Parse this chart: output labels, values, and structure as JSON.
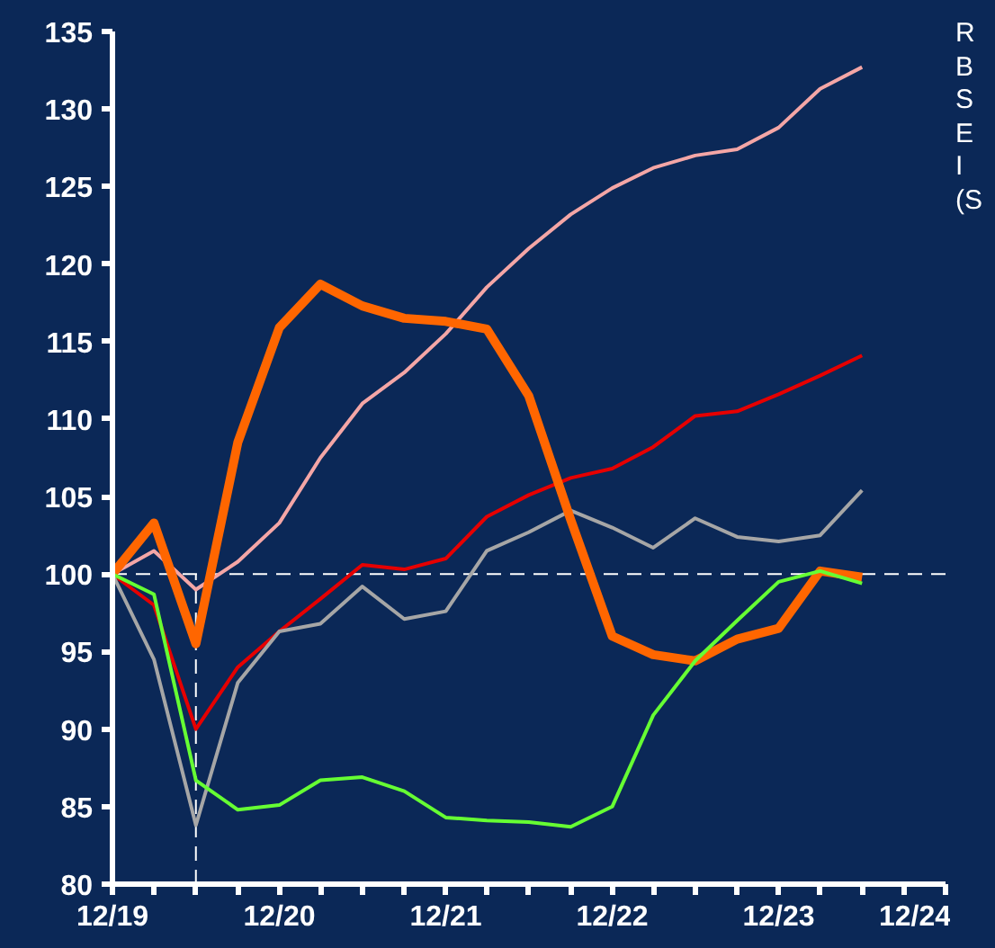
{
  "chart_data": {
    "type": "line",
    "x": [
      "2019-12",
      "2020-03",
      "2020-06",
      "2020-09",
      "2020-12",
      "2021-03",
      "2021-06",
      "2021-09",
      "2021-12",
      "2022-03",
      "2022-06",
      "2022-09",
      "2022-12",
      "2023-03",
      "2023-06",
      "2023-09",
      "2023-12",
      "2024-03",
      "2024-06"
    ],
    "series": [
      {
        "color": "#f4a6a6",
        "values": [
          100,
          101.5,
          99,
          100.8,
          103.3,
          107.5,
          111,
          113,
          115.5,
          118.5,
          121,
          123.2,
          124.9,
          126.2,
          127,
          127.4,
          128.8,
          131.3,
          132.7
        ]
      },
      {
        "color": "#e60000",
        "values": [
          100,
          98,
          90,
          94,
          96.3,
          98.4,
          100.6,
          100.3,
          101,
          103.7,
          105.1,
          106.2,
          106.8,
          108.2,
          110.2,
          110.5,
          111.6,
          112.8,
          114.1
        ]
      },
      {
        "color": "#a6a6a6",
        "values": [
          100,
          94.5,
          83.8,
          93,
          96.3,
          96.8,
          99.2,
          97.1,
          97.6,
          101.5,
          102.7,
          104.1,
          103,
          101.7,
          103.6,
          102.4,
          102.1,
          102.5,
          105.4
        ]
      },
      {
        "color": "#ff6600",
        "values": [
          100,
          103.3,
          95.5,
          108.5,
          115.9,
          118.7,
          117.3,
          116.5,
          116.3,
          115.8,
          111.5,
          103.5,
          96,
          94.8,
          94.4,
          95.8,
          96.5,
          100.2,
          99.8
        ]
      },
      {
        "color": "#66ff33",
        "values": [
          100,
          98.7,
          86.7,
          84.8,
          85.1,
          86.7,
          86.9,
          86,
          84.3,
          84.1,
          84,
          83.7,
          85,
          90.9,
          94.4,
          97,
          99.5,
          100.2,
          99.4
        ]
      }
    ],
    "xlim": [
      "2019-12",
      "2024-12"
    ],
    "xticks": [
      {
        "value": "2019-12",
        "label": "12/19"
      },
      {
        "value": "2020-03",
        "label": null
      },
      {
        "value": "2020-06",
        "label": null
      },
      {
        "value": "2020-09",
        "label": null
      },
      {
        "value": "2020-12",
        "label": "12/20"
      },
      {
        "value": "2021-03",
        "label": null
      },
      {
        "value": "2021-06",
        "label": null
      },
      {
        "value": "2021-09",
        "label": null
      },
      {
        "value": "2021-12",
        "label": "12/21"
      },
      {
        "value": "2022-03",
        "label": null
      },
      {
        "value": "2022-06",
        "label": null
      },
      {
        "value": "2022-09",
        "label": null
      },
      {
        "value": "2022-12",
        "label": "12/22"
      },
      {
        "value": "2023-03",
        "label": null
      },
      {
        "value": "2023-06",
        "label": null
      },
      {
        "value": "2023-09",
        "label": null
      },
      {
        "value": "2023-12",
        "label": "12/23"
      },
      {
        "value": "2024-03",
        "label": null
      },
      {
        "value": "2024-06",
        "label": null
      },
      {
        "value": "2024-09",
        "label": null
      },
      {
        "value": "2024-12",
        "label": "12/24"
      }
    ],
    "ylim": [
      80,
      135
    ],
    "yticks": [
      80,
      85,
      90,
      95,
      100,
      105,
      110,
      115,
      120,
      125,
      130,
      135
    ],
    "ref_lines": [
      {
        "axis": "y",
        "value": 100,
        "color": "#ffffff",
        "line_style": "dashed"
      },
      {
        "axis": "x",
        "value": "2020-06",
        "color": "#ffffff",
        "line_style": "dashed"
      }
    ],
    "annotations": [
      "R",
      "B",
      "S",
      "E",
      "I",
      "(S"
    ],
    "grid": false
  }
}
